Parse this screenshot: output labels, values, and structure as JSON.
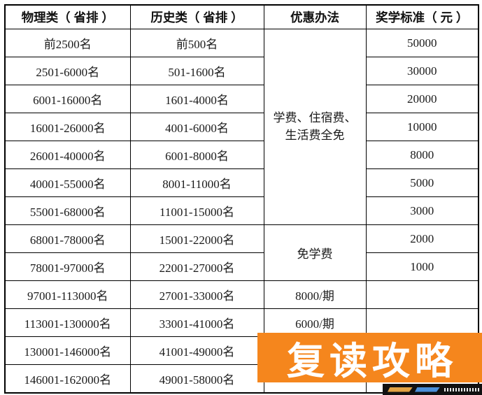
{
  "table": {
    "headers": {
      "physics": "物理类（ 省排 ）",
      "history": "历史类（ 省排 ）",
      "benefit": "优惠办法",
      "award": "奖学标准（ 元 ）"
    },
    "benefit_groups": {
      "full_free_line1": "学费、住宿费、",
      "full_free_line2": "生活费全免",
      "tuition_free": "免学费"
    },
    "rows": [
      {
        "physics": "前2500名",
        "history": "前500名",
        "benefit": "",
        "award": "50000"
      },
      {
        "physics": "2501-6000名",
        "history": "501-1600名",
        "benefit": "",
        "award": "30000"
      },
      {
        "physics": "6001-16000名",
        "history": "1601-4000名",
        "benefit": "",
        "award": "20000"
      },
      {
        "physics": "16001-26000名",
        "history": "4001-6000名",
        "benefit": "",
        "award": "10000"
      },
      {
        "physics": "26001-40000名",
        "history": "6001-8000名",
        "benefit": "",
        "award": "8000"
      },
      {
        "physics": "40001-55000名",
        "history": "8001-11000名",
        "benefit": "",
        "award": "5000"
      },
      {
        "physics": "55001-68000名",
        "history": "11001-15000名",
        "benefit": "",
        "award": "3000"
      },
      {
        "physics": "68001-78000名",
        "history": "15001-22000名",
        "benefit": "",
        "award": "2000"
      },
      {
        "physics": "78001-97000名",
        "history": "22001-27000名",
        "benefit": "",
        "award": "1000"
      },
      {
        "physics": "97001-113000名",
        "history": "27001-33000名",
        "benefit": "8000/期",
        "award": ""
      },
      {
        "physics": "113001-130000名",
        "history": "33001-41000名",
        "benefit": "6000/期",
        "award": ""
      },
      {
        "physics": "130001-146000名",
        "history": "41001-49000名",
        "benefit": "",
        "award": ""
      },
      {
        "physics": "146001-162000名",
        "history": "49001-58000名",
        "benefit": "",
        "award": ""
      }
    ]
  },
  "overlay": {
    "banner_text": "复读攻略",
    "banner_color": "#F5861D",
    "banner_text_color": "#FFFFFF"
  },
  "watermark": {
    "bg_color": "#111111",
    "shape1_color": "#E2A243",
    "shape2_color": "#4A8FD9"
  }
}
